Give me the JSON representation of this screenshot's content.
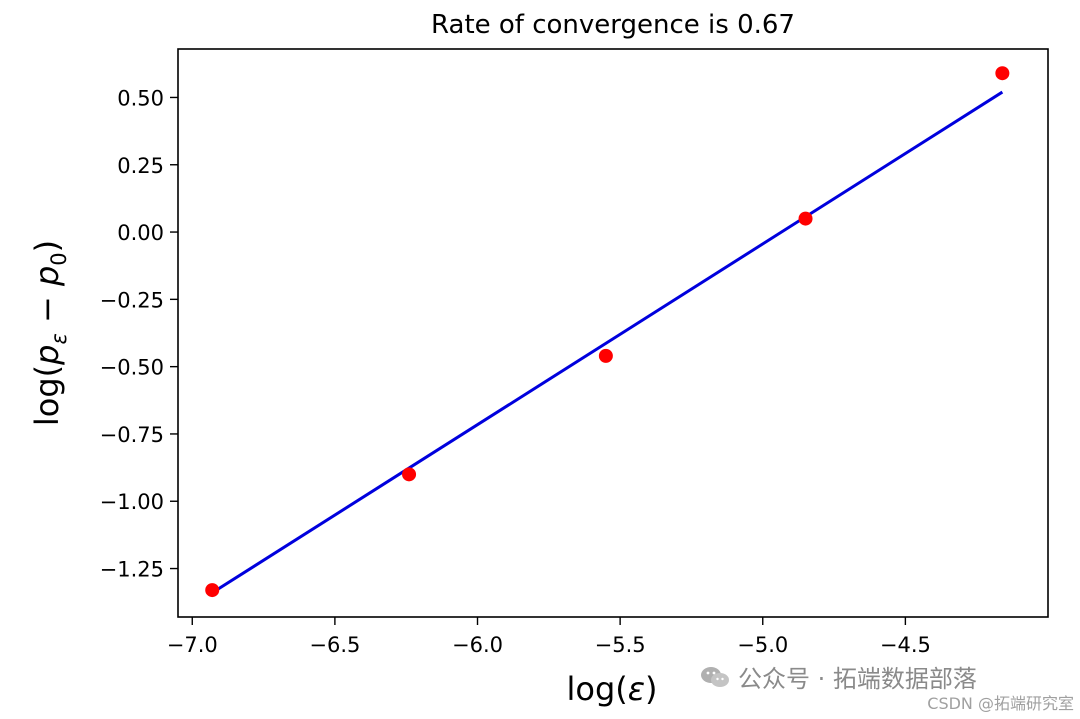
{
  "chart_data": {
    "type": "scatter",
    "title": "Rate of convergence is 0.67",
    "xlabel": "log(ε)",
    "ylabel": "log(p_ε − p_0)",
    "xlim": [
      -7.05,
      -4.0
    ],
    "ylim": [
      -1.43,
      0.68
    ],
    "xticks": [
      -7.0,
      -6.5,
      -6.0,
      -5.5,
      -5.0,
      -4.5
    ],
    "xtick_labels": [
      "−7.0",
      "−6.5",
      "−6.0",
      "−5.5",
      "−5.0",
      "−4.5"
    ],
    "yticks": [
      0.5,
      0.25,
      0.0,
      -0.25,
      -0.5,
      -0.75,
      -1.0,
      -1.25
    ],
    "ytick_labels": [
      "0.50",
      "0.25",
      "0.00",
      "−0.25",
      "−0.50",
      "−0.75",
      "−1.00",
      "−1.25"
    ],
    "grid": false,
    "series": [
      {
        "kind": "scatter",
        "color": "#ff0000",
        "x": [
          -6.93,
          -6.24,
          -5.55,
          -4.85,
          -4.16
        ],
        "y": [
          -1.33,
          -0.9,
          -0.46,
          0.05,
          0.59
        ]
      },
      {
        "kind": "line",
        "color": "#0000dd",
        "x": [
          -6.93,
          -4.16
        ],
        "y": [
          -1.34,
          0.52
        ]
      }
    ]
  },
  "watermark": {
    "main": "公众号 · 拓端数据部落",
    "sub": "CSDN @拓端研究室",
    "icon": "wechat-icon"
  }
}
